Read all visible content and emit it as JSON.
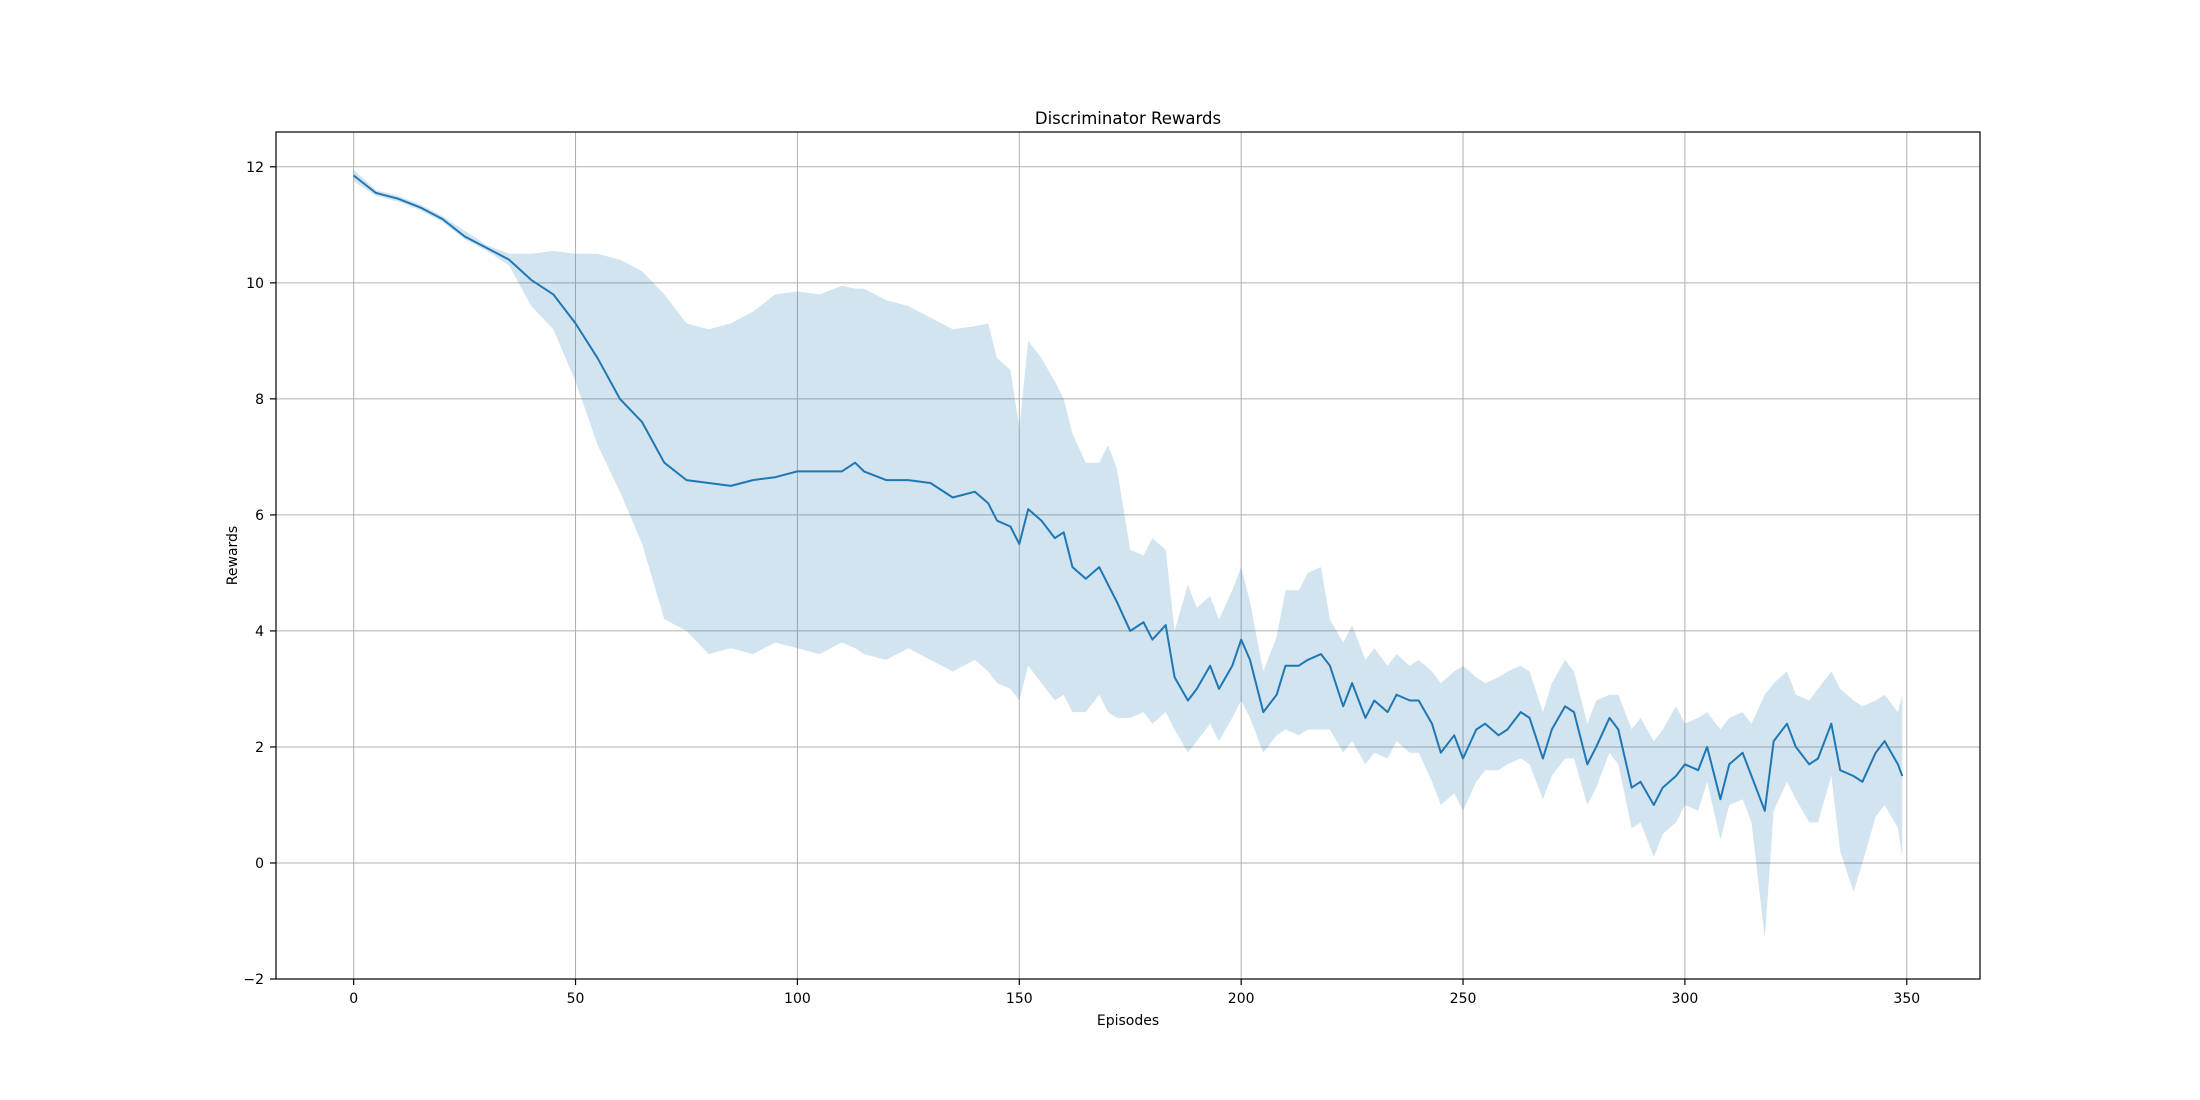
{
  "chart_data": {
    "type": "line",
    "title": "Discriminator Rewards",
    "xlabel": "Episodes",
    "ylabel": "Rewards",
    "xlim": [
      -17.5,
      366.5
    ],
    "ylim": [
      -2,
      12.6
    ],
    "xticks": [
      0,
      50,
      100,
      150,
      200,
      250,
      300,
      350
    ],
    "yticks": [
      -2,
      0,
      2,
      4,
      6,
      8,
      10,
      12
    ],
    "grid": true,
    "line_color": "#1f77b4",
    "band_color": "#1f77b4",
    "band_opacity": 0.2,
    "series": [
      {
        "x": [
          0,
          5,
          10,
          15,
          20,
          25,
          30,
          35,
          40,
          45,
          50,
          55,
          60,
          65,
          70,
          75,
          80,
          85,
          90,
          95,
          100,
          105,
          110,
          113,
          115,
          120,
          125,
          130,
          135,
          140,
          143,
          145,
          148,
          150,
          152,
          155,
          158,
          160,
          162,
          165,
          168,
          170,
          172,
          175,
          178,
          180,
          183,
          185,
          188,
          190,
          193,
          195,
          198,
          200,
          202,
          205,
          208,
          210,
          213,
          215,
          218,
          220,
          223,
          225,
          228,
          230,
          233,
          235,
          238,
          240,
          243,
          245,
          248,
          250,
          253,
          255,
          258,
          260,
          263,
          265,
          268,
          270,
          273,
          275,
          278,
          280,
          283,
          285,
          288,
          290,
          293,
          295,
          298,
          300,
          303,
          305,
          308,
          310,
          313,
          315,
          318,
          320,
          323,
          325,
          328,
          330,
          333,
          335,
          338,
          340,
          343,
          345,
          348,
          349
        ],
        "mean": [
          11.85,
          11.55,
          11.45,
          11.3,
          11.1,
          10.8,
          10.6,
          10.4,
          10.05,
          9.8,
          9.3,
          8.7,
          8.0,
          7.6,
          6.9,
          6.6,
          6.55,
          6.5,
          6.6,
          6.65,
          6.75,
          6.75,
          6.75,
          6.9,
          6.75,
          6.6,
          6.6,
          6.55,
          6.3,
          6.4,
          6.2,
          5.9,
          5.8,
          5.5,
          6.1,
          5.9,
          5.6,
          5.7,
          5.1,
          4.9,
          5.1,
          4.8,
          4.5,
          4.0,
          4.15,
          3.85,
          4.1,
          3.2,
          2.8,
          3.0,
          3.4,
          3.0,
          3.4,
          3.85,
          3.5,
          2.6,
          2.9,
          3.4,
          3.4,
          3.5,
          3.6,
          3.4,
          2.7,
          3.1,
          2.5,
          2.8,
          2.6,
          2.9,
          2.8,
          2.8,
          2.4,
          1.9,
          2.2,
          1.8,
          2.3,
          2.4,
          2.2,
          2.3,
          2.6,
          2.5,
          1.8,
          2.3,
          2.7,
          2.6,
          1.7,
          2.0,
          2.5,
          2.3,
          1.3,
          1.4,
          1.0,
          1.3,
          1.5,
          1.7,
          1.6,
          2.0,
          1.1,
          1.7,
          1.9,
          1.5,
          0.9,
          2.1,
          2.4,
          2.0,
          1.7,
          1.8,
          2.4,
          1.6,
          1.5,
          1.4,
          1.9,
          2.1,
          1.7,
          1.5
        ],
        "upper": [
          11.95,
          11.6,
          11.5,
          11.35,
          11.15,
          10.9,
          10.65,
          10.5,
          10.5,
          10.55,
          10.5,
          10.5,
          10.4,
          10.2,
          9.8,
          9.3,
          9.2,
          9.3,
          9.5,
          9.8,
          9.85,
          9.8,
          9.95,
          9.9,
          9.9,
          9.7,
          9.6,
          9.4,
          9.2,
          9.25,
          9.3,
          8.7,
          8.5,
          7.5,
          9.0,
          8.7,
          8.3,
          8.0,
          7.4,
          6.9,
          6.9,
          7.2,
          6.8,
          5.4,
          5.3,
          5.6,
          5.4,
          4.0,
          4.8,
          4.4,
          4.6,
          4.2,
          4.7,
          5.1,
          4.5,
          3.3,
          3.9,
          4.7,
          4.7,
          5.0,
          5.1,
          4.2,
          3.8,
          4.1,
          3.5,
          3.7,
          3.4,
          3.6,
          3.4,
          3.5,
          3.3,
          3.1,
          3.3,
          3.4,
          3.2,
          3.1,
          3.2,
          3.3,
          3.4,
          3.3,
          2.6,
          3.1,
          3.5,
          3.3,
          2.4,
          2.8,
          2.9,
          2.9,
          2.3,
          2.5,
          2.1,
          2.3,
          2.7,
          2.4,
          2.5,
          2.6,
          2.3,
          2.5,
          2.6,
          2.4,
          2.9,
          3.1,
          3.3,
          2.9,
          2.8,
          3.0,
          3.3,
          3.0,
          2.8,
          2.7,
          2.8,
          2.9,
          2.6,
          2.9
        ],
        "lower": [
          11.75,
          11.5,
          11.4,
          11.25,
          11.05,
          10.75,
          10.55,
          10.3,
          9.6,
          9.2,
          8.3,
          7.2,
          6.4,
          5.5,
          4.2,
          4.0,
          3.6,
          3.7,
          3.6,
          3.8,
          3.7,
          3.6,
          3.8,
          3.7,
          3.6,
          3.5,
          3.7,
          3.5,
          3.3,
          3.5,
          3.3,
          3.1,
          3.0,
          2.8,
          3.4,
          3.1,
          2.8,
          2.9,
          2.6,
          2.6,
          2.9,
          2.6,
          2.5,
          2.5,
          2.6,
          2.4,
          2.6,
          2.3,
          1.9,
          2.1,
          2.4,
          2.1,
          2.5,
          2.8,
          2.5,
          1.9,
          2.2,
          2.3,
          2.2,
          2.3,
          2.3,
          2.3,
          1.9,
          2.1,
          1.7,
          1.9,
          1.8,
          2.1,
          1.9,
          1.9,
          1.4,
          1.0,
          1.2,
          0.9,
          1.4,
          1.6,
          1.6,
          1.7,
          1.8,
          1.7,
          1.1,
          1.5,
          1.8,
          1.8,
          1.0,
          1.3,
          1.9,
          1.7,
          0.6,
          0.7,
          0.1,
          0.5,
          0.7,
          1.0,
          0.9,
          1.4,
          0.4,
          1.0,
          1.1,
          0.7,
          -1.3,
          0.9,
          1.4,
          1.1,
          0.7,
          0.7,
          1.5,
          0.2,
          -0.5,
          0.0,
          0.8,
          1.0,
          0.6,
          0.1
        ]
      }
    ]
  }
}
